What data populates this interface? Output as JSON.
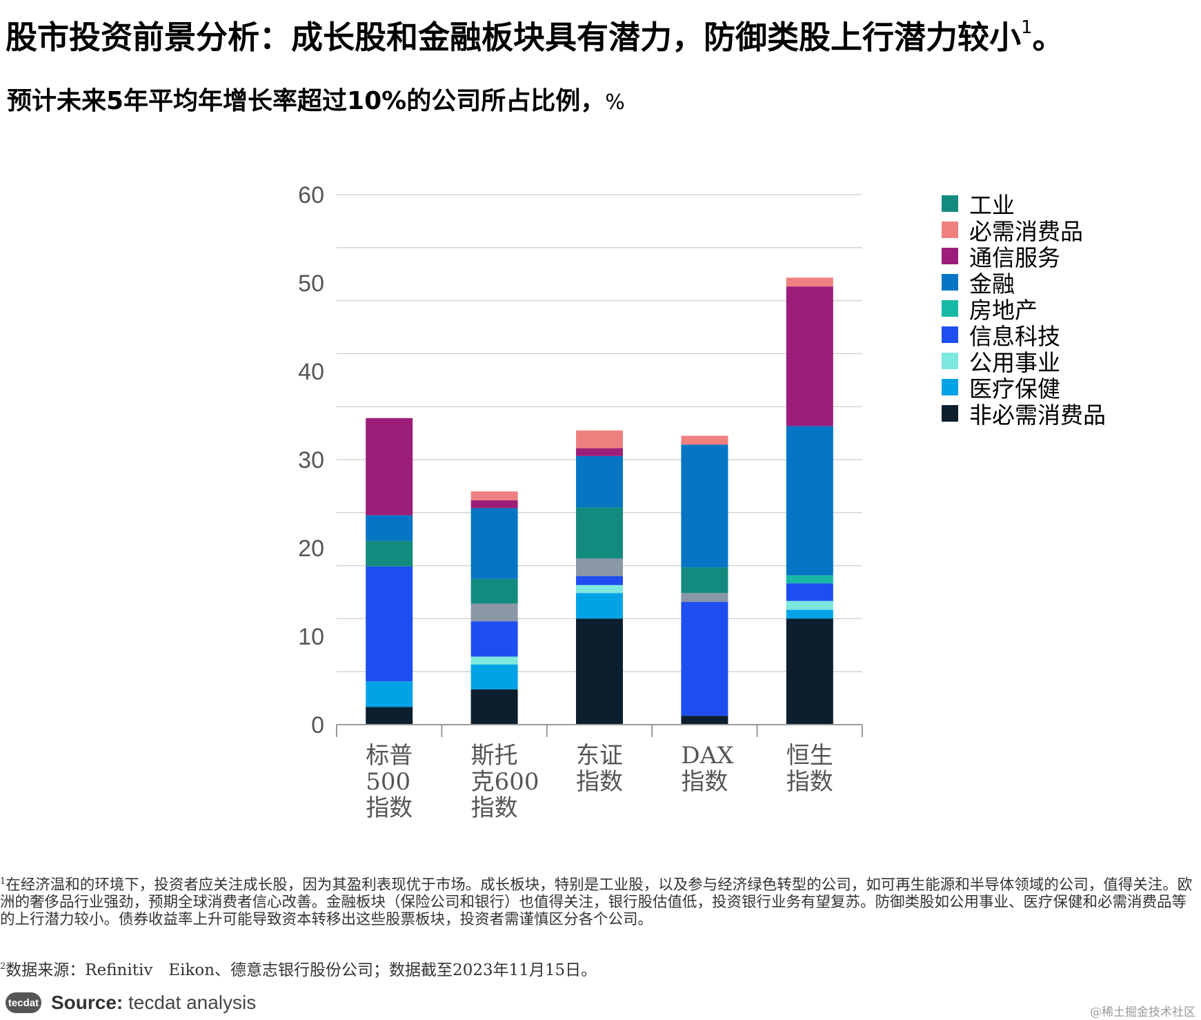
{
  "title": "股市投资前景分析：成长股和金融板块具有潜力，防御类股上行潜力较小",
  "title_footnote_mark": "1",
  "title_end": "。",
  "subtitle": "预计未来5年平均年增长率超过10%的公司所占比例，",
  "subtitle_unit": "%",
  "chart_data": {
    "type": "bar",
    "stacked": true,
    "categories": [
      "标普500指数",
      "斯托克600指数",
      "东证指数",
      "DAX指数",
      "恒生指数"
    ],
    "category_lines": [
      [
        "标普",
        "500",
        "指数"
      ],
      [
        "斯托",
        "克600",
        "指数"
      ],
      [
        "东证",
        "指数"
      ],
      [
        "DAX",
        "指数"
      ],
      [
        "恒生",
        "指数"
      ]
    ],
    "ylim": [
      0,
      60
    ],
    "yticks": [
      0,
      10,
      20,
      30,
      40,
      50,
      60
    ],
    "grid": true,
    "legend_position": "right",
    "series": [
      {
        "name": "非必需消费品",
        "color": "#0b1f2e",
        "values": [
          2.0,
          4.0,
          12.0,
          1.0,
          12.0
        ]
      },
      {
        "name": "医疗保健",
        "color": "#00a3e6",
        "values": [
          2.9,
          2.8,
          2.9,
          0,
          1.0
        ]
      },
      {
        "name": "公用事业",
        "color": "#7de8dd",
        "values": [
          0,
          0.9,
          0.9,
          0,
          1.0
        ]
      },
      {
        "name": "信息科技",
        "color": "#1f4ef0",
        "values": [
          13.0,
          4.0,
          1.0,
          12.9,
          2.0
        ]
      },
      {
        "name": "",
        "color": "#8a97a6",
        "values": [
          0,
          2.0,
          2.0,
          1.0,
          0
        ]
      },
      {
        "name": "房地产",
        "color": "#17b9a6",
        "values": [
          0,
          0,
          0,
          0,
          0.9
        ]
      },
      {
        "name": "工业",
        "color": "#138a7e",
        "values": [
          2.9,
          2.8,
          5.8,
          2.9,
          0
        ]
      },
      {
        "name": "金融",
        "color": "#0575c4",
        "values": [
          2.9,
          8.0,
          5.8,
          13.9,
          16.9
        ]
      },
      {
        "name": "通信服务",
        "color": "#9c1e7a",
        "values": [
          11.0,
          0.9,
          0.9,
          0,
          15.8
        ]
      },
      {
        "name": "必需消费品",
        "color": "#f08080",
        "values": [
          0,
          1.0,
          2.0,
          1.0,
          1.0
        ]
      }
    ]
  },
  "legend": [
    {
      "label": "工业",
      "color": "#138a7e"
    },
    {
      "label": "必需消费品",
      "color": "#f08080"
    },
    {
      "label": "通信服务",
      "color": "#9c1e7a"
    },
    {
      "label": "金融",
      "color": "#0575c4"
    },
    {
      "label": "房地产",
      "color": "#17b9a6"
    },
    {
      "label": "信息科技",
      "color": "#1f4ef0"
    },
    {
      "label": "公用事业",
      "color": "#7de8dd"
    },
    {
      "label": "医疗保健",
      "color": "#00a3e6"
    },
    {
      "label": "非必需消费品",
      "color": "#0b1f2e"
    }
  ],
  "footnote1_mark": "1",
  "footnote1": "在经济温和的环境下，投资者应关注成长股，因为其盈利表现优于市场。成长板块，特别是工业股，以及参与经济绿色转型的公司，如可再生能源和半导体领域的公司，值得关注。欧洲的奢侈品行业强劲，预期全球消费者信心改善。金融板块（保险公司和银行）也值得关注，银行股估值低，投资银行业务有望复苏。防御类股如公用事业、医疗保健和必需消费品等的上行潜力较小。债券收益率上升可能导致资本转移出这些股票板块，投资者需谨慎区分各个公司。",
  "footnote2_mark": "2",
  "footnote2": "数据来源：Refinitiv　Eikon、德意志银行股份公司；数据截至2023年11月15日。",
  "logo_text": "tecdat",
  "source_label": "Source:",
  "source_value": " tecdat analysis",
  "watermark": "@稀土掘金技术社区"
}
